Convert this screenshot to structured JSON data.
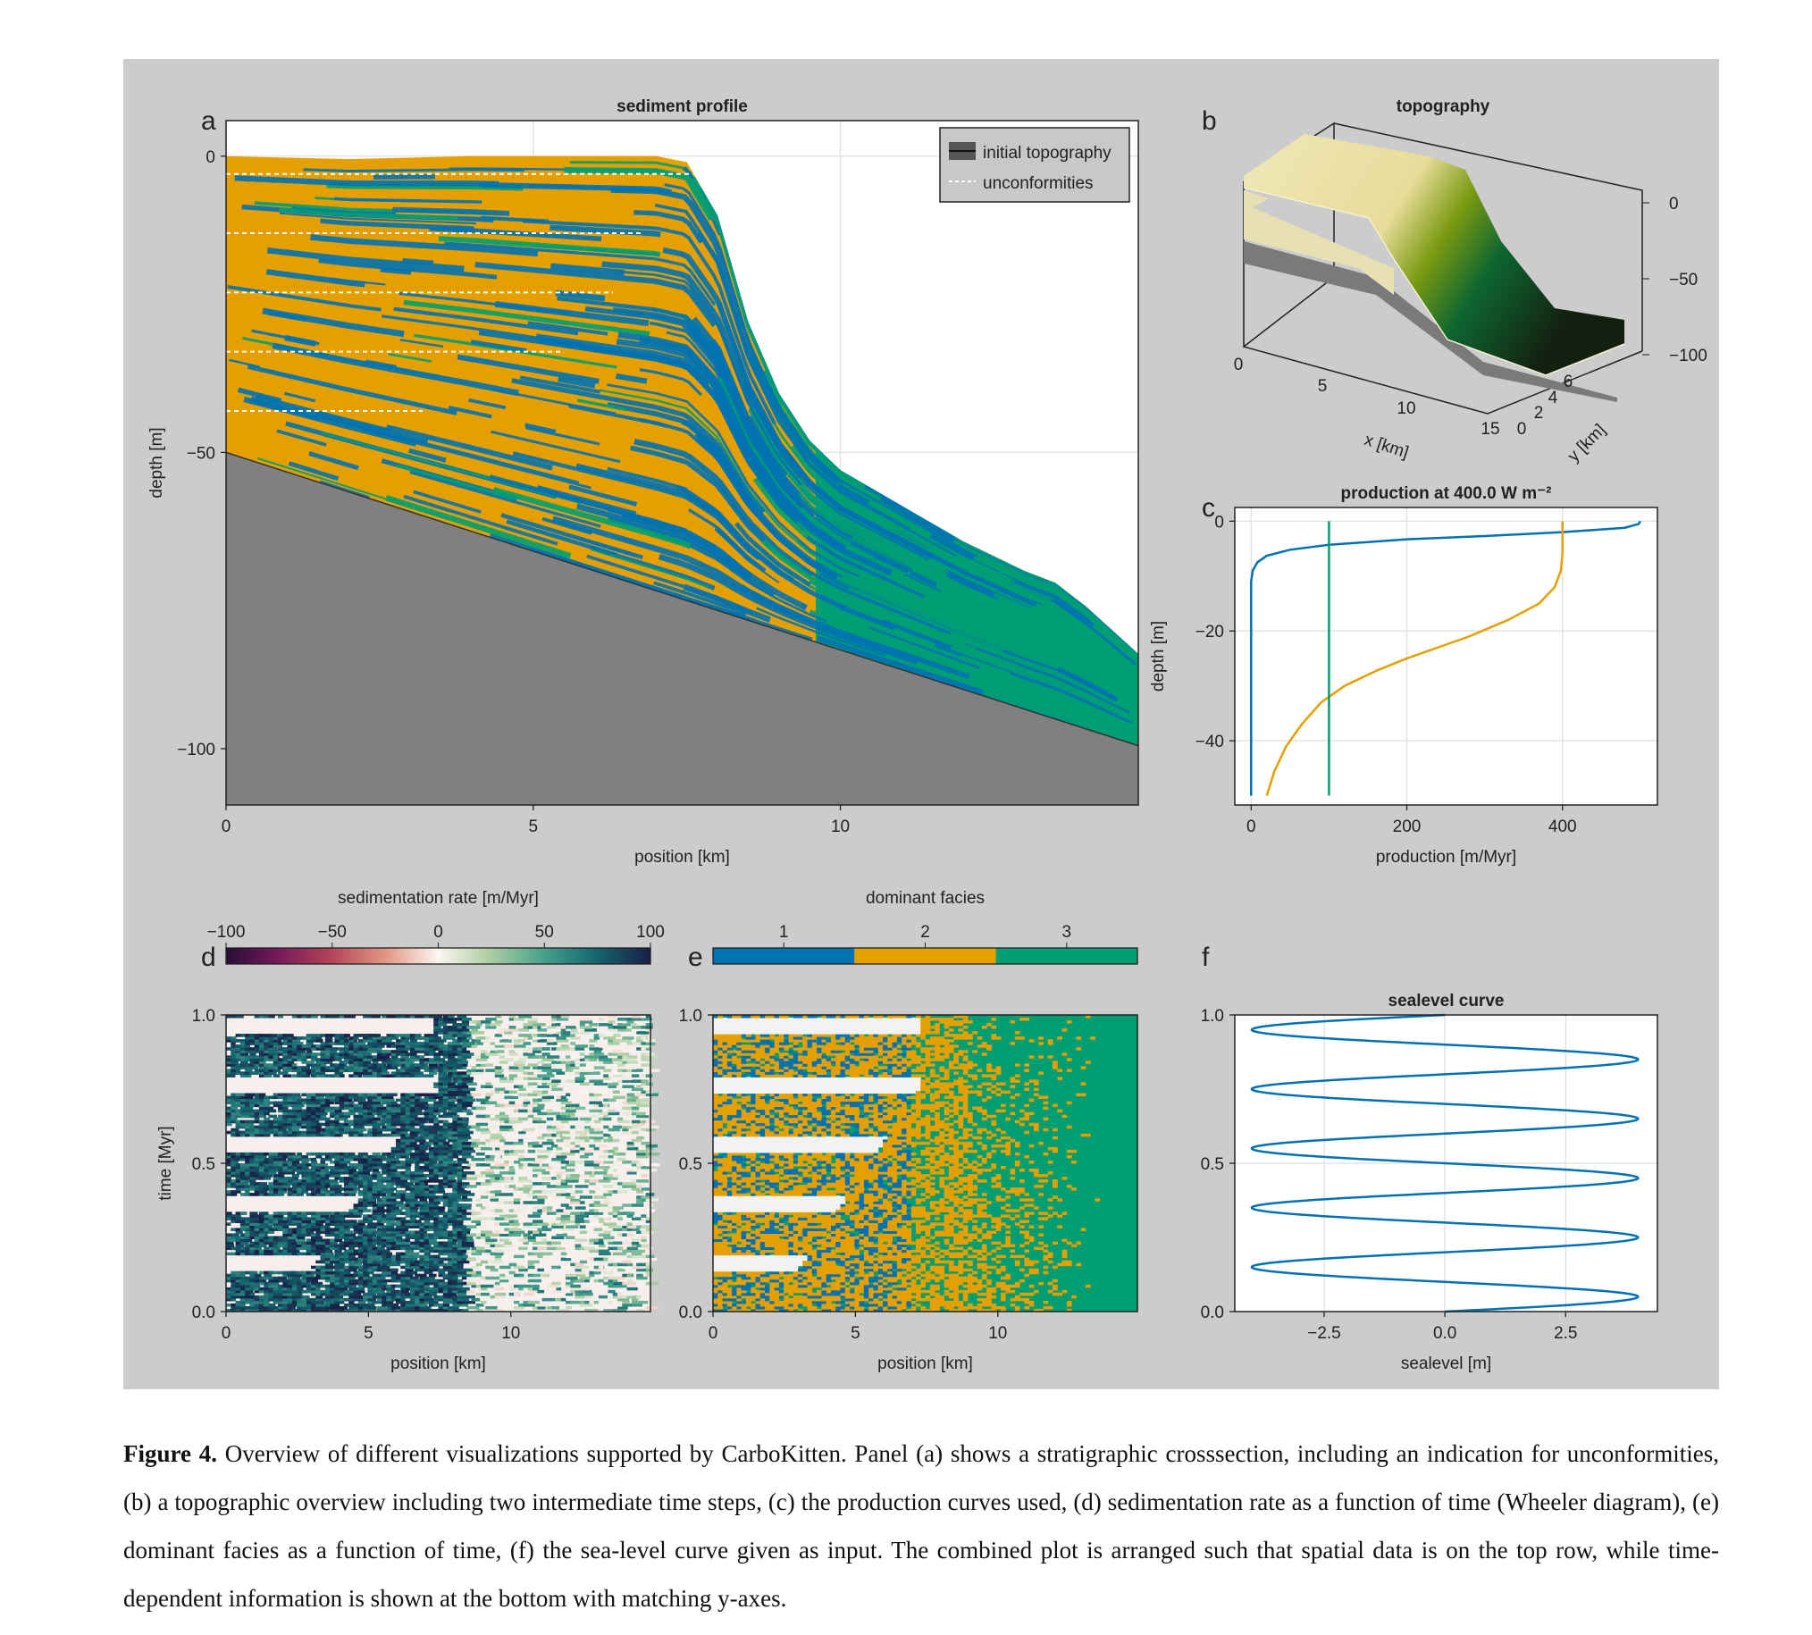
{
  "figure": {
    "caption_label": "Figure 4.",
    "caption_text": "Overview of different visualizations supported by CarboKitten. Panel (a) shows a stratigraphic crosssection, including an indication for unconformities, (b) a topographic overview including two intermediate time steps, (c) the production curves used, (d) sedimentation rate as a function of time (Wheeler diagram), (e) dominant facies as a function of time, (f) the sea-level curve given as input. The combined plot is arranged such that spatial data is on the top row, while time-dependent information is shown at the bottom with matching y-axes."
  },
  "colors": {
    "facies1": "#0072b2",
    "facies2": "#e69f00",
    "facies3": "#009e73",
    "initial_topography": "#808080",
    "background": "#cccccc"
  },
  "chart_data": [
    {
      "panel": "a",
      "type": "area",
      "title": "sediment profile",
      "xlabel": "position [km]",
      "ylabel": "depth [m]",
      "xlim": [
        0,
        14.85
      ],
      "ylim": [
        -109.5,
        6
      ],
      "xticks": [
        "0",
        "5",
        "10"
      ],
      "xtick_values": [
        0,
        5,
        10
      ],
      "yticks": [
        "0",
        "−50",
        "−100"
      ],
      "ytick_values": [
        0,
        -50,
        -100
      ],
      "legend": {
        "placement": "top-right",
        "entries": [
          {
            "label": "initial topography",
            "style": "solid",
            "color": "#333333"
          },
          {
            "label": "unconformities",
            "style": "dashed",
            "color": "#ffffff"
          }
        ]
      },
      "initial_topography": {
        "x": [
          0,
          14.85
        ],
        "y": [
          -50,
          -99.5
        ]
      },
      "top_surface": {
        "x": [
          0,
          2,
          4,
          5,
          6,
          7,
          7.5,
          8,
          8.5,
          9,
          9.5,
          10,
          10.5,
          11,
          12,
          13,
          13.5,
          14,
          14.85
        ],
        "y": [
          0,
          -0.5,
          0,
          0,
          0,
          0,
          -1,
          -10,
          -28,
          -40,
          -48,
          -53,
          -56,
          -59,
          -65,
          -70,
          -72,
          -76,
          -84
        ]
      },
      "unconformities": [
        {
          "depth": -3,
          "x_end": 7.6
        },
        {
          "depth": -13,
          "x_end": 6.8
        },
        {
          "depth": -23,
          "x_end": 6.3
        },
        {
          "depth": -33,
          "x_end": 5.5
        },
        {
          "depth": -43,
          "x_end": 3.2
        }
      ]
    },
    {
      "panel": "b",
      "type": "surface",
      "title": "topography",
      "xlabel": "x [km]",
      "ylabel": "y [km]",
      "xticks": [
        "0",
        "5",
        "10",
        "15"
      ],
      "yticks": [
        "0",
        "2",
        "4",
        "6"
      ],
      "zticks": [
        "0",
        "−50",
        "−100"
      ]
    },
    {
      "panel": "c",
      "type": "line",
      "title": "production at 400.0 W m⁻²",
      "xlabel": "production [m/Myr]",
      "ylabel": "depth [m]",
      "xlim": [
        -21,
        522
      ],
      "ylim": [
        -51.7,
        2.5
      ],
      "xticks": [
        "0",
        "200",
        "400"
      ],
      "xtick_values": [
        0,
        200,
        400
      ],
      "yticks": [
        "0",
        "−20",
        "−40"
      ],
      "ytick_values": [
        0,
        -20,
        -40
      ],
      "series": [
        {
          "color": "#0072b2",
          "x": [
            500,
            498,
            480,
            400,
            300,
            200,
            100,
            50,
            20,
            8,
            2,
            0,
            0
          ],
          "y": [
            0,
            -0.5,
            -1.2,
            -2,
            -2.7,
            -3.3,
            -4.3,
            -5.2,
            -6.3,
            -7.5,
            -9,
            -11,
            -50
          ]
        },
        {
          "color": "#e69f00",
          "x": [
            400,
            400,
            398,
            390,
            370,
            330,
            280,
            230,
            200,
            160,
            120,
            90,
            65,
            45,
            30,
            20
          ],
          "y": [
            0,
            -6,
            -9,
            -12,
            -15,
            -18,
            -21,
            -23.5,
            -25,
            -27.3,
            -30,
            -33,
            -37,
            -41,
            -45.5,
            -50
          ]
        },
        {
          "color": "#009e73",
          "x": [
            100,
            100
          ],
          "y": [
            0,
            -50
          ]
        }
      ]
    },
    {
      "panel": "d",
      "type": "heatmap",
      "colorbar_label": "sedimentation rate [m/Myr]",
      "colorbar_ticks": [
        "−100",
        "−50",
        "0",
        "50",
        "100"
      ],
      "colorbar_range": [
        -100,
        100
      ],
      "xlabel": "position [km]",
      "ylabel": "time [Myr]",
      "xlim": [
        0,
        14.9
      ],
      "ylim": [
        0,
        1
      ],
      "xticks": [
        "0",
        "5",
        "10"
      ],
      "yticks": [
        "0.0",
        "0.5",
        "1.0"
      ]
    },
    {
      "panel": "e",
      "type": "heatmap",
      "colorbar_label": "dominant facies",
      "colorbar_ticks": [
        "1",
        "2",
        "3"
      ],
      "xlabel": "position [km]",
      "ylabel": "",
      "xlim": [
        0,
        14.9
      ],
      "ylim": [
        0,
        1
      ],
      "xticks": [
        "0",
        "5",
        "10"
      ],
      "yticks": [
        "0.0",
        "0.5",
        "1.0"
      ]
    },
    {
      "panel": "f",
      "type": "line",
      "title": "sealevel curve",
      "xlabel": "sealevel [m]",
      "ylabel": "",
      "xlim": [
        -4.35,
        4.4
      ],
      "ylim": [
        0,
        1
      ],
      "xticks": [
        "−2.5",
        "0.0",
        "2.5"
      ],
      "xtick_values": [
        -2.5,
        0,
        2.5
      ],
      "yticks": [
        "0.0",
        "0.5",
        "1.0"
      ],
      "ytick_values": [
        0,
        0.5,
        1
      ],
      "series": [
        {
          "color": "#0072b2",
          "amplitude": 4,
          "period": 0.2,
          "t": [
            0,
            1
          ]
        }
      ]
    }
  ],
  "panel_letters": [
    "a",
    "b",
    "c",
    "d",
    "e",
    "f"
  ]
}
